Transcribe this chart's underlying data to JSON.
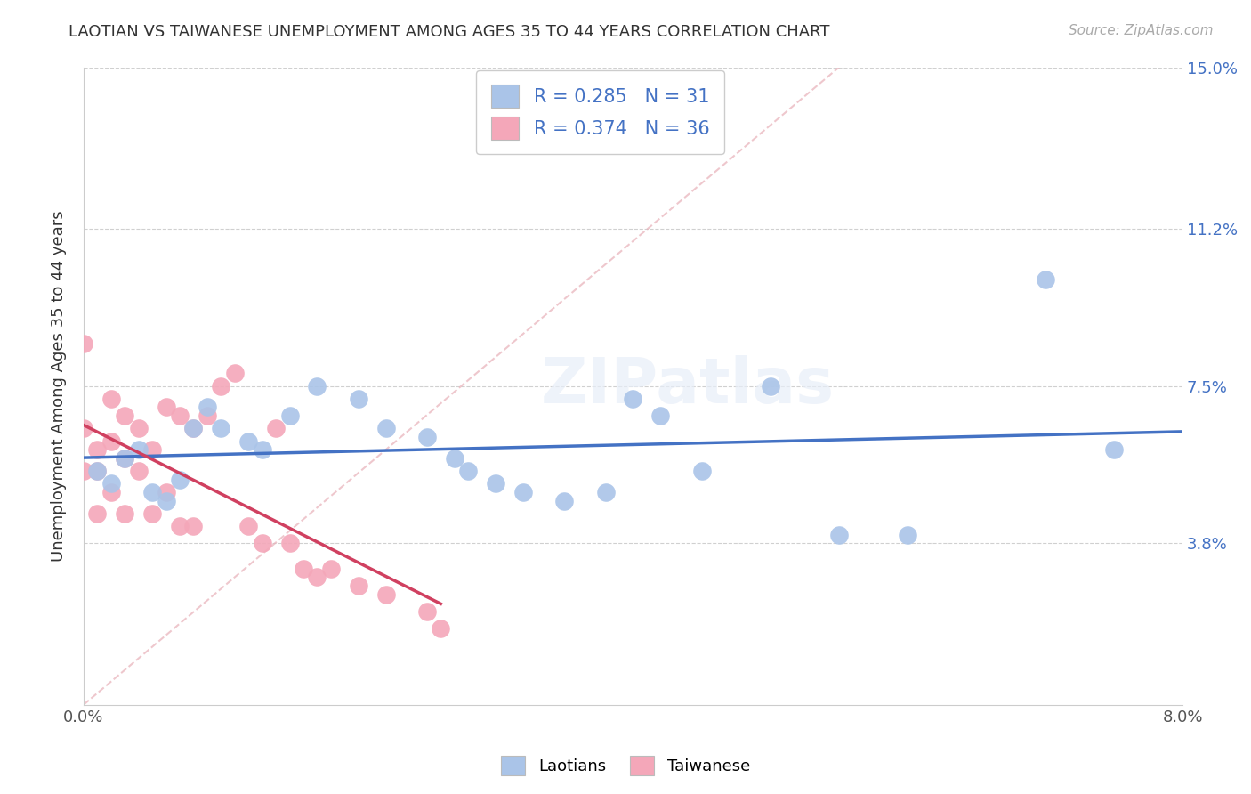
{
  "title": "LAOTIAN VS TAIWANESE UNEMPLOYMENT AMONG AGES 35 TO 44 YEARS CORRELATION CHART",
  "source": "Source: ZipAtlas.com",
  "ylabel": "Unemployment Among Ages 35 to 44 years",
  "xlim": [
    0.0,
    0.08
  ],
  "ylim": [
    0.0,
    0.15
  ],
  "ytick_labels_right": [
    "15.0%",
    "11.2%",
    "7.5%",
    "3.8%"
  ],
  "ytick_vals_right": [
    0.15,
    0.112,
    0.075,
    0.038
  ],
  "laotian_R": "0.285",
  "laotian_N": "31",
  "taiwanese_R": "0.374",
  "taiwanese_N": "36",
  "laotian_color": "#aac4e8",
  "taiwanese_color": "#f4a7b9",
  "laotian_line_color": "#4472C4",
  "taiwanese_line_color": "#D04060",
  "laotian_scatter_x": [
    0.001,
    0.002,
    0.003,
    0.004,
    0.005,
    0.006,
    0.007,
    0.008,
    0.009,
    0.01,
    0.012,
    0.013,
    0.015,
    0.017,
    0.02,
    0.022,
    0.025,
    0.027,
    0.028,
    0.03,
    0.032,
    0.035,
    0.038,
    0.04,
    0.042,
    0.045,
    0.05,
    0.055,
    0.06,
    0.07,
    0.075
  ],
  "laotian_scatter_y": [
    0.055,
    0.052,
    0.058,
    0.06,
    0.05,
    0.048,
    0.053,
    0.065,
    0.07,
    0.065,
    0.062,
    0.06,
    0.068,
    0.075,
    0.072,
    0.065,
    0.063,
    0.058,
    0.055,
    0.052,
    0.05,
    0.048,
    0.05,
    0.072,
    0.068,
    0.055,
    0.075,
    0.04,
    0.04,
    0.1,
    0.06
  ],
  "taiwanese_scatter_x": [
    0.0,
    0.0,
    0.0,
    0.001,
    0.001,
    0.001,
    0.002,
    0.002,
    0.002,
    0.003,
    0.003,
    0.003,
    0.004,
    0.004,
    0.005,
    0.005,
    0.006,
    0.006,
    0.007,
    0.007,
    0.008,
    0.008,
    0.009,
    0.01,
    0.011,
    0.012,
    0.013,
    0.014,
    0.015,
    0.016,
    0.017,
    0.018,
    0.02,
    0.022,
    0.025,
    0.026
  ],
  "taiwanese_scatter_y": [
    0.085,
    0.065,
    0.055,
    0.06,
    0.055,
    0.045,
    0.072,
    0.062,
    0.05,
    0.068,
    0.058,
    0.045,
    0.065,
    0.055,
    0.06,
    0.045,
    0.07,
    0.05,
    0.068,
    0.042,
    0.065,
    0.042,
    0.068,
    0.075,
    0.078,
    0.042,
    0.038,
    0.065,
    0.038,
    0.032,
    0.03,
    0.032,
    0.028,
    0.026,
    0.022,
    0.018
  ],
  "background_color": "#ffffff",
  "grid_color": "#d0d0d0",
  "watermark": "ZIPatlas"
}
